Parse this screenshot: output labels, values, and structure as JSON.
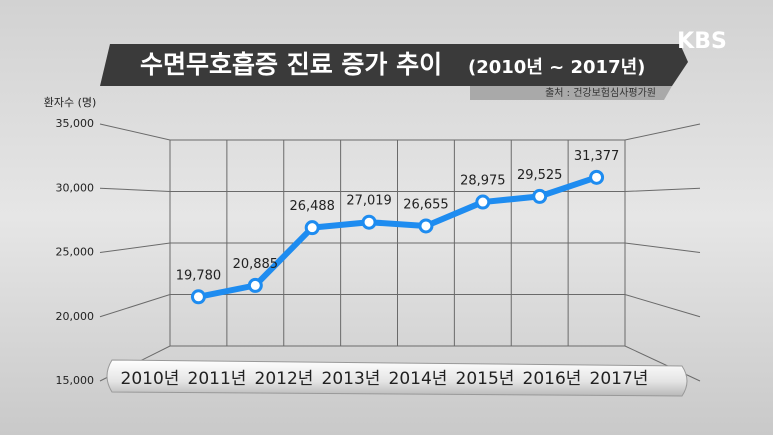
{
  "chart_data": {
    "type": "line",
    "title": "수면무호흡증 진료 증가 추이",
    "subtitle": "(2010년 ~ 2017년)",
    "source": "출처 : 건강보험심사평가원",
    "logo": "KBS",
    "y_label": "환자수 (명)",
    "categories": [
      "2010년",
      "2011년",
      "2012년",
      "2013년",
      "2014년",
      "2015년",
      "2016년",
      "2017년"
    ],
    "values": [
      19780,
      20885,
      26488,
      27019,
      26655,
      28975,
      29525,
      31377
    ],
    "value_labels": [
      "19,780",
      "20,885",
      "26,488",
      "27,019",
      "26,655",
      "28,975",
      "29,525",
      "31,377"
    ],
    "color": "#1e8cf0",
    "ylim": [
      15000,
      35000
    ],
    "yticks": [
      {
        "value": 15000,
        "label": "15,000"
      },
      {
        "value": 20000,
        "label": "20,000"
      },
      {
        "value": 25000,
        "label": "25,000"
      },
      {
        "value": 30000,
        "label": "30,000"
      },
      {
        "value": 35000,
        "label": "35,000"
      }
    ],
    "grid": true
  }
}
